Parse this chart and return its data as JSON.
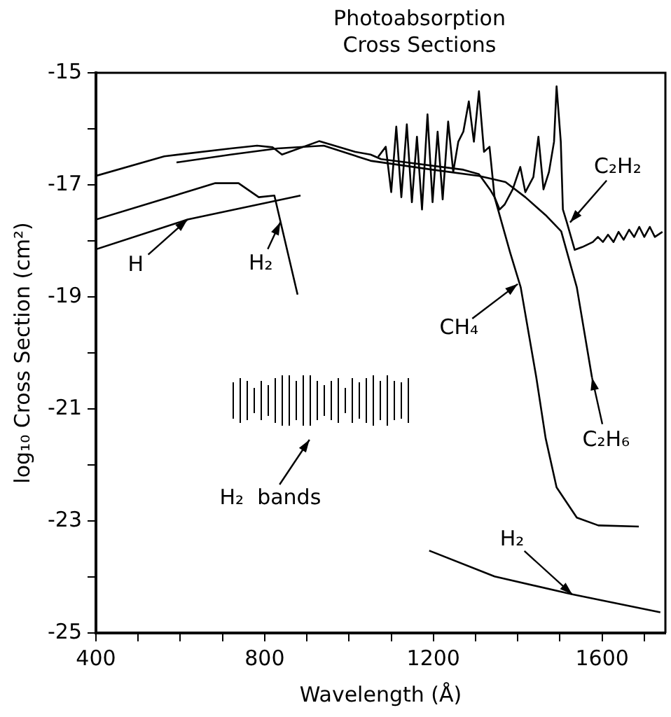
{
  "chart_data": {
    "type": "line",
    "title": "Photoabsorption Cross Sections",
    "xlabel": "Wavelength (Å)",
    "ylabel": "log₁₀ Cross Section (cm²)",
    "xlim": [
      400,
      1750
    ],
    "xticks": [
      400,
      {
        "value": 500,
        "label": null
      },
      {
        "value": 600,
        "label": null
      },
      {
        "value": 700,
        "label": null
      },
      800,
      {
        "value": 900,
        "label": null
      },
      {
        "value": 1000,
        "label": null
      },
      {
        "value": 1100,
        "label": null
      },
      1200,
      {
        "value": 1300,
        "label": null
      },
      {
        "value": 1400,
        "label": null
      },
      {
        "value": 1500,
        "label": null
      },
      1600,
      {
        "value": 1700,
        "label": null
      }
    ],
    "ylim": [
      -25,
      -15
    ],
    "yticks": [
      -25,
      {
        "value": -24,
        "label": null
      },
      -23,
      {
        "value": -22,
        "label": null
      },
      -21,
      {
        "value": -20,
        "label": null
      },
      -19,
      {
        "value": -18,
        "label": null
      },
      -17,
      {
        "value": -16,
        "label": null
      },
      -15
    ],
    "grid": false,
    "legend": false,
    "marker": "none",
    "line_style": "solid",
    "series": [
      {
        "color": "#000000",
        "x": [
          400,
          617,
          885
        ],
        "values": [
          -18.15,
          -17.62,
          -17.19
        ]
      },
      {
        "color": "#000000",
        "x": [
          400,
          683,
          738,
          786,
          823,
          878
        ],
        "values": [
          -17.62,
          -16.97,
          -16.97,
          -17.22,
          -17.19,
          -18.96
        ]
      },
      {
        "color": "#000000",
        "x": [
          400,
          562,
          720,
          782,
          819,
          841,
          929,
          1014,
          1051,
          1076,
          1271,
          1308,
          1334,
          1345,
          1382,
          1407,
          1444,
          1466,
          1492,
          1540,
          1591,
          1687
        ],
        "values": [
          -16.84,
          -16.49,
          -16.35,
          -16.3,
          -16.33,
          -16.46,
          -16.22,
          -16.41,
          -16.46,
          -16.54,
          -16.73,
          -16.81,
          -17.08,
          -17.22,
          -18.21,
          -18.83,
          -20.44,
          -21.52,
          -22.4,
          -22.94,
          -23.08,
          -23.1
        ]
      },
      {
        "color": "#000000",
        "x": [
          591,
          720,
          830,
          940,
          1051,
          1198,
          1308,
          1371,
          1418,
          1466,
          1503,
          1540,
          1576
        ],
        "values": [
          -16.6,
          -16.46,
          -16.35,
          -16.3,
          -16.57,
          -16.73,
          -16.84,
          -16.95,
          -17.22,
          -17.54,
          -17.83,
          -18.83,
          -20.44
        ]
      },
      {
        "color": "#000000",
        "x": [
          1069,
          1087,
          1100,
          1112,
          1124,
          1137,
          1149,
          1161,
          1173,
          1186,
          1198,
          1210,
          1222,
          1235,
          1247,
          1259,
          1271,
          1284,
          1296,
          1308,
          1320,
          1333,
          1345,
          1357,
          1369,
          1388,
          1406,
          1418,
          1437,
          1449,
          1461,
          1474,
          1486,
          1492,
          1502,
          1507,
          1516,
          1535,
          1553,
          1578,
          1590,
          1602,
          1614,
          1627,
          1639,
          1651,
          1664,
          1676,
          1688,
          1700,
          1713,
          1725,
          1743
        ],
        "values": [
          -16.5,
          -16.32,
          -17.13,
          -15.96,
          -17.22,
          -15.92,
          -17.31,
          -16.14,
          -17.44,
          -15.74,
          -17.31,
          -16.05,
          -17.26,
          -15.87,
          -16.77,
          -16.23,
          -16.05,
          -15.51,
          -16.23,
          -15.33,
          -16.41,
          -16.32,
          -17.22,
          -17.44,
          -17.35,
          -17.08,
          -16.68,
          -17.13,
          -16.86,
          -16.14,
          -17.08,
          -16.77,
          -16.23,
          -15.24,
          -16.23,
          -17.44,
          -17.66,
          -18.16,
          -18.11,
          -18.02,
          -17.93,
          -18.02,
          -17.89,
          -18.02,
          -17.84,
          -17.98,
          -17.8,
          -17.93,
          -17.75,
          -17.93,
          -17.75,
          -17.93,
          -17.84
        ]
      },
      {
        "color": "#000000",
        "x": [
          1190,
          1345,
          1529,
          1738
        ],
        "values": [
          -23.53,
          -23.99,
          -24.31,
          -24.63
        ]
      }
    ],
    "annotations": [
      {
        "text": "H",
        "x": 617,
        "y": -17.62
      },
      {
        "text": "H₂",
        "x": 837,
        "y": -17.67
      },
      "H₂  bands",
      {
        "text": "CH₄",
        "x": 1400,
        "y": -18.77
      },
      {
        "text": "C₂H₂",
        "x": 1524,
        "y": -17.67
      },
      {
        "text": "C₂H₆",
        "x": 1576,
        "y": -20.44
      },
      {
        "text": "H₂",
        "x": 1529,
        "y": -24.31
      }
    ]
  }
}
